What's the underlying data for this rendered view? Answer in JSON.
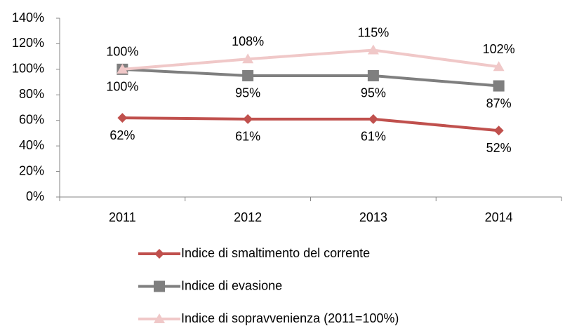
{
  "chart_data": {
    "type": "line",
    "categories": [
      "2011",
      "2012",
      "2013",
      "2014"
    ],
    "series": [
      {
        "name": "Indice di smaltimento del corrente",
        "color": "#c0504d",
        "marker": "diamond",
        "label_position": "below",
        "values": [
          62,
          61,
          61,
          52
        ],
        "value_labels": [
          "62%",
          "61%",
          "61%",
          "52%"
        ]
      },
      {
        "name": "Indice di evasione",
        "color": "#7f7f7f",
        "marker": "square",
        "label_position": "below",
        "values": [
          100,
          95,
          95,
          87
        ],
        "value_labels": [
          "100%",
          "95%",
          "95%",
          "87%"
        ]
      },
      {
        "name": "Indice di sopravvenienza (2011=100%)",
        "color": "#f0c8c8",
        "marker": "triangle",
        "label_position": "above",
        "values": [
          100,
          108,
          115,
          102
        ],
        "value_labels": [
          "100%",
          "108%",
          "115%",
          "102%"
        ]
      }
    ],
    "ylim": [
      0,
      140
    ],
    "yticks": [
      {
        "value": 0,
        "label": "0%"
      },
      {
        "value": 20,
        "label": "20%"
      },
      {
        "value": 40,
        "label": "40%"
      },
      {
        "value": 60,
        "label": "60%"
      },
      {
        "value": 80,
        "label": "80%"
      },
      {
        "value": 100,
        "label": "100%"
      },
      {
        "value": 120,
        "label": "120%"
      },
      {
        "value": 140,
        "label": "140%"
      }
    ],
    "grid": false,
    "legend": "bottom"
  }
}
